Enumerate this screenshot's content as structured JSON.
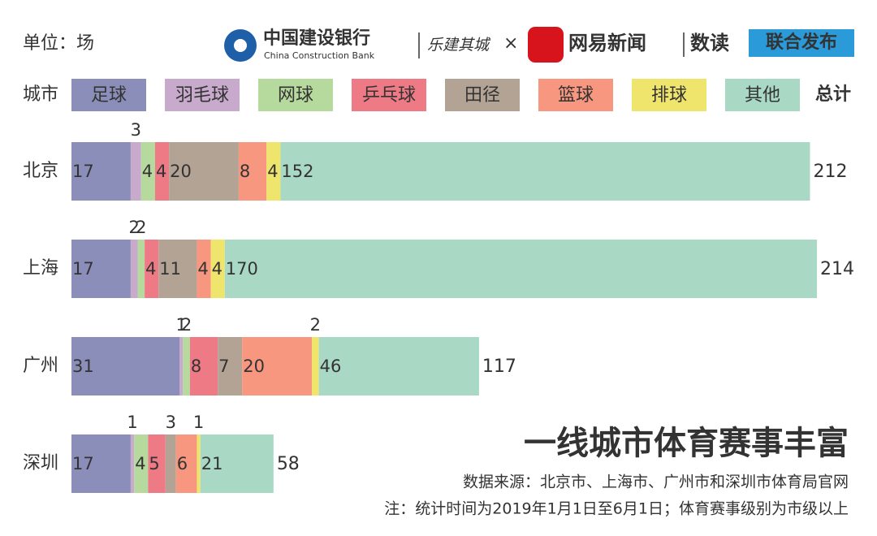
{
  "header": {
    "unit": "单位：场",
    "bank_name": "中国建设银行",
    "bank_name_en": "China Construction Bank",
    "partner": "乐建其城",
    "times": "×",
    "netease": "网易新闻",
    "shudu": "数读",
    "release": "联合发布"
  },
  "chart_data": {
    "type": "stacked-bar-horizontal",
    "title": "一线城市体育赛事丰富",
    "source": "数据来源：北京市、上海市、广州市和深圳市体育局官网",
    "note": "注：统计时间为2019年1月1日至6月1日；体育赛事级别为市级以上",
    "category_header": "城市",
    "total_header": "总计",
    "categories": [
      "北京",
      "上海",
      "广州",
      "深圳"
    ],
    "totals": [
      212,
      214,
      117,
      58
    ],
    "series": [
      {
        "name": "足球",
        "color": "#8b8eb9",
        "label_color": "#2e3160",
        "values": [
          17,
          17,
          31,
          17
        ]
      },
      {
        "name": "羽毛球",
        "color": "#c8aacc",
        "label_color": "#5e4a66",
        "values": [
          3,
          2,
          1,
          1
        ]
      },
      {
        "name": "网球",
        "color": "#b6d99d",
        "label_color": "#4d7a33",
        "values": [
          4,
          2,
          2,
          4
        ]
      },
      {
        "name": "乒乓球",
        "color": "#ee7a86",
        "label_color": "#8a1f2c",
        "values": [
          4,
          4,
          8,
          5
        ]
      },
      {
        "name": "田径",
        "color": "#b3a394",
        "label_color": "#4a3c30",
        "values": [
          20,
          11,
          7,
          3
        ]
      },
      {
        "name": "篮球",
        "color": "#f8977f",
        "label_color": "#8d2e1a",
        "values": [
          8,
          4,
          20,
          6
        ]
      },
      {
        "name": "排球",
        "color": "#f0e56c",
        "label_color": "#6b6312",
        "values": [
          4,
          4,
          2,
          1
        ]
      },
      {
        "name": "其他",
        "color": "#a9d9c5",
        "label_color": "#3b7a60",
        "values": [
          152,
          170,
          46,
          21
        ]
      }
    ]
  }
}
